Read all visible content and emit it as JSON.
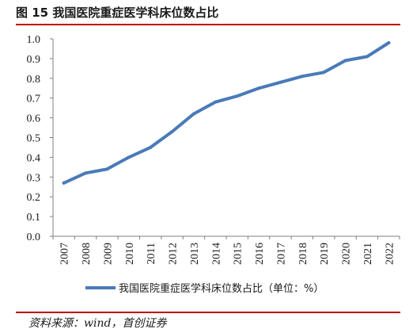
{
  "figure": {
    "title": "图 15  我国医院重症医学科床位数占比",
    "source": "资料来源：wind，首创证券"
  },
  "colors": {
    "rule": "#c00000",
    "series": "#4a7ab8"
  },
  "chart_data": {
    "type": "line",
    "title": "",
    "xlabel": "",
    "ylabel": "",
    "x": [
      "2007",
      "2008",
      "2009",
      "2010",
      "2011",
      "2012",
      "2013",
      "2014",
      "2015",
      "2016",
      "2017",
      "2018",
      "2019",
      "2020",
      "2021",
      "2022"
    ],
    "ylim": [
      0,
      1.0
    ],
    "yticks": [
      "0.0",
      "0.1",
      "0.2",
      "0.3",
      "0.4",
      "0.5",
      "0.6",
      "0.7",
      "0.8",
      "0.9",
      "1.0"
    ],
    "grid": false,
    "legend": "bottom",
    "series": [
      {
        "name": "我国医院重症医学科床位数占比（单位：%）",
        "values": [
          0.27,
          0.32,
          0.34,
          0.4,
          0.45,
          0.53,
          0.62,
          0.68,
          0.71,
          0.75,
          0.78,
          0.81,
          0.83,
          0.89,
          0.91,
          0.98
        ]
      }
    ]
  }
}
